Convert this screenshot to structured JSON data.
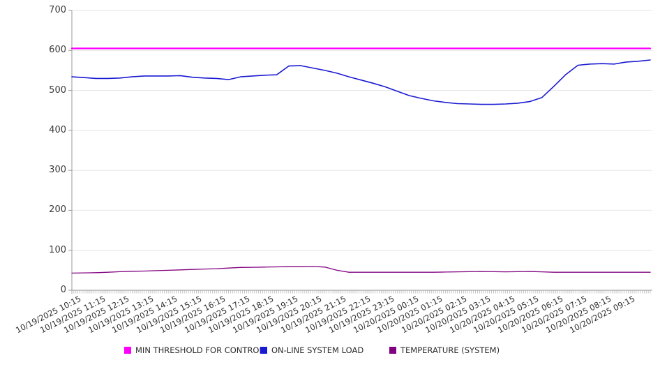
{
  "chart_data": {
    "type": "line",
    "title": "",
    "x_axis": {
      "tick_labels": [
        "10/19/2025 10:15",
        "10/19/2025 11:15",
        "10/19/2025 12:15",
        "10/19/2025 13:15",
        "10/19/2025 14:15",
        "10/19/2025 15:15",
        "10/19/2025 16:15",
        "10/19/2025 17:15",
        "10/19/2025 18:15",
        "10/19/2025 19:15",
        "10/19/2025 20:15",
        "10/19/2025 21:15",
        "10/19/2025 22:15",
        "10/19/2025 23:15",
        "10/20/2025 00:15",
        "10/20/2025 01:15",
        "10/20/2025 02:15",
        "10/20/2025 03:15",
        "10/20/2025 04:15",
        "10/20/2025 05:15",
        "10/20/2025 06:15",
        "10/20/2025 07:15",
        "10/20/2025 08:15",
        "10/20/2025 09:15"
      ],
      "minor_ticks_count": 288,
      "sampling_note": "series values sampled every 30 minutes starting 10/19/2025 10:15, spanning 24 h"
    },
    "y_axis": {
      "min": 0,
      "max": 700,
      "tick_step": 100,
      "grid": true
    },
    "series": [
      {
        "name": "MIN THRESHOLD FOR CONTROL",
        "color": "#ff00ff",
        "style": "constant",
        "value": 605
      },
      {
        "name": "ON-LINE SYSTEM LOAD",
        "color": "#1a1ad2",
        "style": "line",
        "values": [
          534,
          532,
          530,
          530,
          531,
          534,
          536,
          536,
          536,
          537,
          533,
          531,
          530,
          527,
          534,
          536,
          538,
          539,
          561,
          562,
          556,
          550,
          543,
          534,
          526,
          518,
          509,
          498,
          487,
          480,
          474,
          470,
          467,
          466,
          465,
          465,
          466,
          468,
          472,
          482,
          510,
          540,
          563,
          566,
          567,
          566,
          571,
          573,
          576
        ]
      },
      {
        "name": "TEMPERATURE (SYSTEM)",
        "color": "#800080",
        "style": "line",
        "values": [
          43,
          43.5,
          44,
          45,
          46.5,
          47.5,
          48,
          49,
          50,
          51,
          52,
          53,
          54,
          55.5,
          57,
          57.5,
          58,
          58.5,
          59,
          59,
          59.5,
          58,
          50,
          45,
          45,
          45,
          45,
          45,
          45,
          45,
          45,
          45.5,
          46,
          46.5,
          47,
          46.5,
          46,
          46.5,
          47,
          46,
          45,
          45,
          45,
          45,
          45,
          45,
          45,
          45,
          45
        ]
      }
    ],
    "legend": {
      "position": "bottom"
    },
    "colors": {
      "grid": "#e4e4e4",
      "axis": "#999999",
      "minor_tick": "#b5b5b5"
    }
  }
}
